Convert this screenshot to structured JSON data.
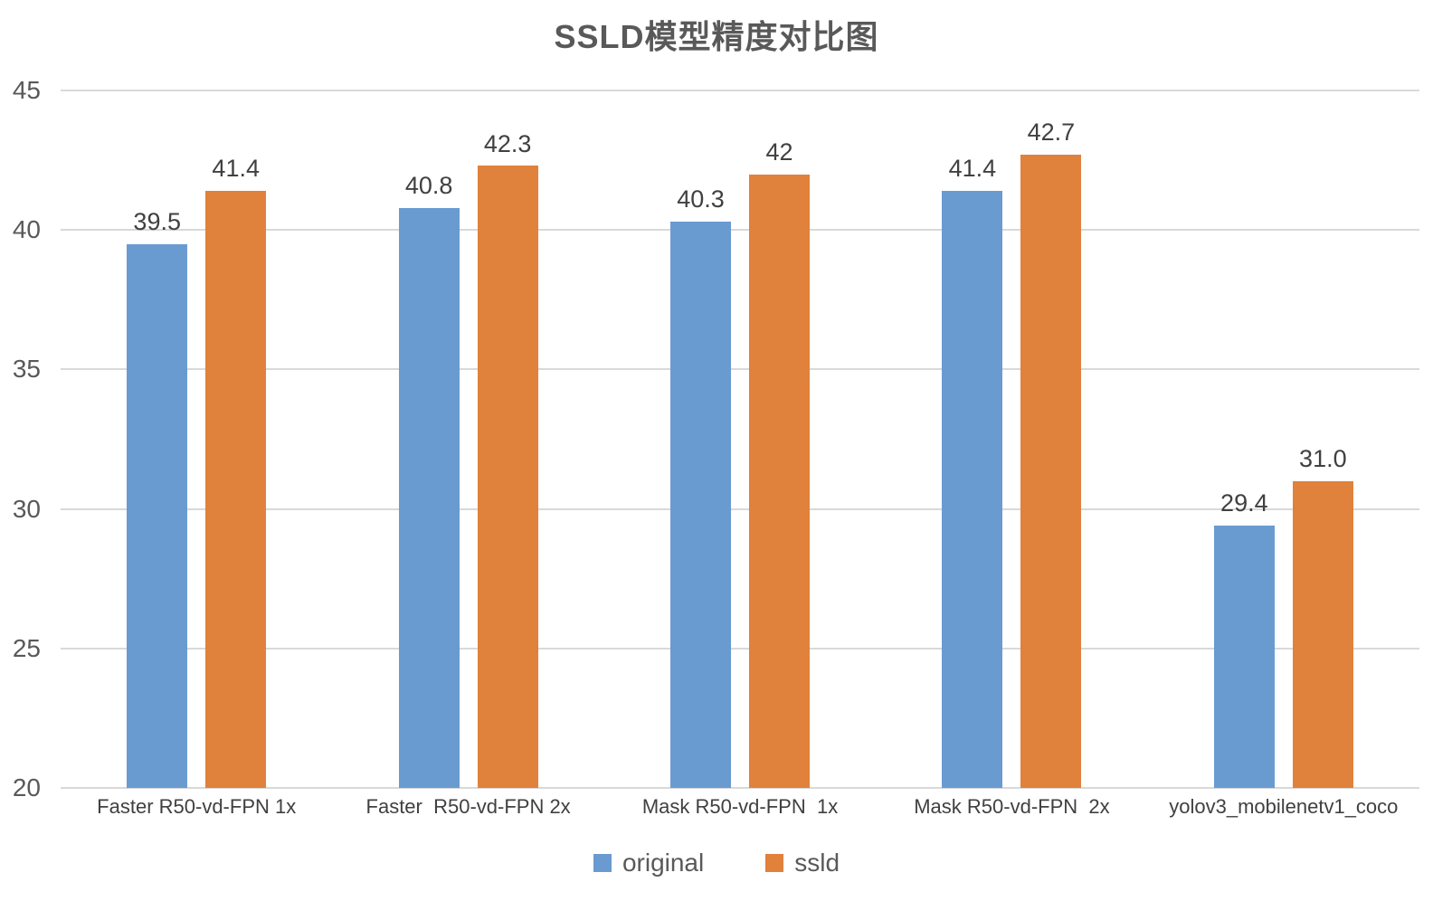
{
  "chart_data": {
    "type": "bar",
    "title": "SSLD模型精度对比图",
    "categories": [
      "Faster R50-vd-FPN 1x",
      "Faster  R50-vd-FPN 2x",
      "Mask R50-vd-FPN  1x",
      "Mask R50-vd-FPN  2x",
      "yolov3_mobilenetv1_coco"
    ],
    "series": [
      {
        "name": "original",
        "color": "#699bd1",
        "values": [
          39.5,
          40.8,
          40.3,
          41.4,
          29.4
        ],
        "labels": [
          "39.5",
          "40.8",
          "40.3",
          "41.4",
          "29.4"
        ]
      },
      {
        "name": "ssld",
        "color": "#e0813c",
        "values": [
          41.4,
          42.3,
          42.0,
          42.7,
          31.0
        ],
        "labels": [
          "41.4",
          "42.3",
          "42",
          "42.7",
          "31.0"
        ]
      }
    ],
    "ylim": [
      20,
      45
    ],
    "yticks": [
      20,
      25,
      30,
      35,
      40,
      45
    ],
    "grid": true,
    "legend_position": "bottom",
    "xlabel": "",
    "ylabel": ""
  },
  "colors": {
    "gridline": "#d9d9d9",
    "title_text": "#595959",
    "axis_text": "#595959",
    "value_text": "#404040",
    "background": "#ffffff"
  }
}
